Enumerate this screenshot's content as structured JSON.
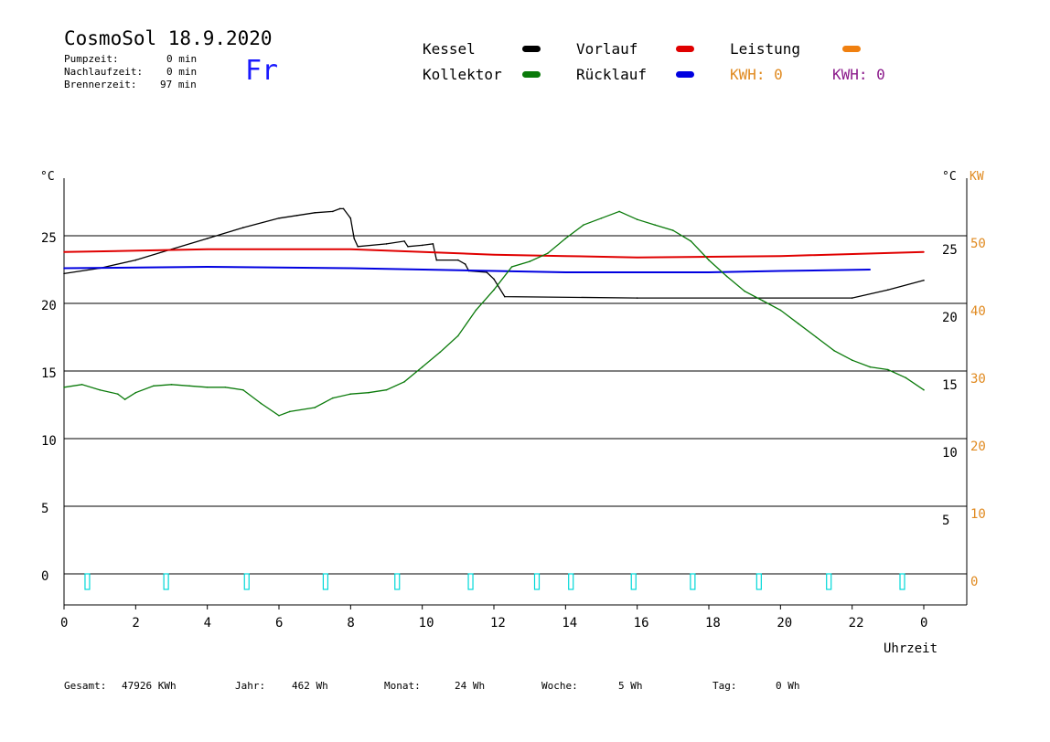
{
  "header": {
    "title": "CosmoSol 18.9.2020",
    "weekday": "Fr",
    "stats": [
      {
        "label": "Pumpzeit:",
        "value": "0 min"
      },
      {
        "label": "Nachlaufzeit:",
        "value": "0 min"
      },
      {
        "label": "Brennerzeit:",
        "value": "97 min"
      }
    ]
  },
  "legend": {
    "kessel": "Kessel",
    "kollektor": "Kollektor",
    "vorlauf": "Vorlauf",
    "ruecklauf": "Rücklauf",
    "leistung": "Leistung",
    "kwh1": "KWH: 0",
    "kwh2": "KWH: 0"
  },
  "colors": {
    "kessel": "#000000",
    "kollektor": "#0a7a0a",
    "vorlauf": "#e00000",
    "ruecklauf": "#0000e0",
    "leistung": "#f08010",
    "kwh2": "#8b1a8b",
    "pump": "#00d8d8"
  },
  "footer": {
    "gesamt_label": "Gesamt:",
    "gesamt_value": "47926 KWh",
    "jahr_label": "Jahr:",
    "jahr_value": "462 Wh",
    "monat_label": "Monat:",
    "monat_value": "24 Wh",
    "woche_label": "Woche:",
    "woche_value": "5 Wh",
    "tag_label": "Tag:",
    "tag_value": "0 Wh"
  },
  "chart_data": {
    "type": "line",
    "xlabel": "Uhrzeit",
    "ylabel_left": "°C",
    "ylabel_right_1": "°C",
    "ylabel_right_2": "KW",
    "xlim": [
      0,
      24
    ],
    "ylim": [
      0,
      30
    ],
    "x_ticks": [
      "0",
      "2",
      "4",
      "6",
      "8",
      "10",
      "12",
      "14",
      "16",
      "18",
      "20",
      "22",
      "0"
    ],
    "y_ticks_left": [
      "0",
      "5",
      "10",
      "15",
      "20",
      "25"
    ],
    "y_ticks_right_c": [
      "5",
      "10",
      "15",
      "20",
      "25"
    ],
    "y_ticks_right_kw": [
      "0",
      "10",
      "20",
      "30",
      "40",
      "50"
    ],
    "grid_lines": [
      5,
      10,
      15,
      20,
      25
    ],
    "series": [
      {
        "name": "Kessel",
        "color": "#000000",
        "x": [
          0,
          1,
          2,
          3,
          4,
          5,
          6,
          6.5,
          7,
          7.5,
          7.7,
          7.8,
          8.0,
          8.1,
          8.2,
          9,
          9.5,
          9.6,
          10,
          10.3,
          10.4,
          11,
          11.2,
          11.3,
          11.8,
          12.0,
          12.3,
          16,
          22,
          23,
          24
        ],
        "y": [
          22.2,
          22.6,
          23.2,
          24.0,
          24.8,
          25.6,
          26.3,
          26.5,
          26.7,
          26.8,
          27.0,
          27.0,
          26.3,
          24.8,
          24.2,
          24.4,
          24.6,
          24.2,
          24.3,
          24.4,
          23.2,
          23.2,
          22.9,
          22.4,
          22.3,
          21.8,
          20.5,
          20.4,
          20.4,
          21.0,
          21.7
        ]
      },
      {
        "name": "Vorlauf",
        "color": "#e00000",
        "x": [
          0,
          4,
          8,
          12,
          14,
          16,
          20,
          24
        ],
        "y": [
          23.8,
          24.0,
          24.0,
          23.6,
          23.5,
          23.4,
          23.5,
          23.8
        ]
      },
      {
        "name": "Rücklauf",
        "color": "#0000e0",
        "x": [
          0,
          4,
          8,
          12,
          14,
          16,
          18,
          20,
          22.5
        ],
        "y": [
          22.6,
          22.7,
          22.6,
          22.4,
          22.3,
          22.3,
          22.3,
          22.4,
          22.5
        ]
      },
      {
        "name": "Kollektor",
        "color": "#0a7a0a",
        "x": [
          0,
          0.5,
          1,
          1.5,
          1.7,
          2,
          2.5,
          3,
          3.5,
          4,
          4.5,
          5,
          5.5,
          6,
          6.3,
          7,
          7.5,
          8,
          8.5,
          9,
          9.5,
          10,
          10.5,
          11,
          11.5,
          12,
          12.5,
          13,
          13.5,
          14,
          14.5,
          15,
          15.5,
          16,
          16.5,
          17,
          17.5,
          18,
          18.5,
          19,
          19.5,
          20,
          20.5,
          21,
          21.5,
          22,
          22.5,
          23,
          23.5,
          24
        ],
        "y": [
          13.8,
          14.0,
          13.6,
          13.3,
          12.9,
          13.4,
          13.9,
          14.0,
          13.9,
          13.8,
          13.8,
          13.6,
          12.6,
          11.7,
          12.0,
          12.3,
          13.0,
          13.3,
          13.4,
          13.6,
          14.2,
          15.3,
          16.4,
          17.6,
          19.5,
          21.0,
          22.7,
          23.1,
          23.7,
          24.8,
          25.8,
          26.3,
          26.8,
          26.2,
          25.8,
          25.4,
          24.6,
          23.2,
          22.0,
          20.9,
          20.2,
          19.5,
          18.5,
          17.5,
          16.5,
          15.8,
          15.3,
          15.1,
          14.5,
          13.6
        ]
      },
      {
        "name": "Pumpe",
        "color": "#00d8d8",
        "x": [
          0.65,
          2.85,
          5.1,
          7.3,
          9.3,
          11.35,
          13.2,
          14.15,
          15.9,
          17.55,
          19.4,
          21.35,
          23.4
        ],
        "y": [
          0,
          0,
          0,
          0,
          0,
          0,
          0,
          0,
          0,
          0,
          0,
          0,
          0
        ]
      }
    ]
  }
}
